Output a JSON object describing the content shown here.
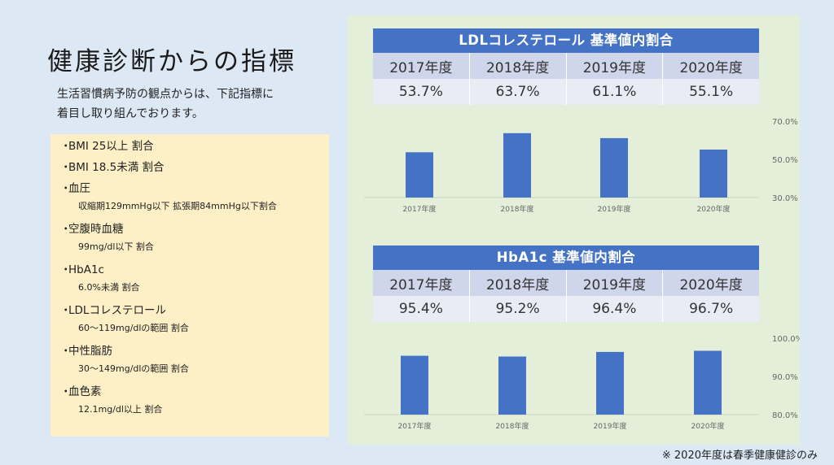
{
  "page_title": "健康診断からの指標",
  "intro": {
    "line1": "生活習慣病予防の観点からは、下記指標に",
    "line2": "着目し取り組んでおります。"
  },
  "metrics": [
    {
      "label": "BMI 25以上 割合",
      "sub": ""
    },
    {
      "label": "BMI 18.5未満 割合",
      "sub": ""
    },
    {
      "label": "血圧",
      "sub": "収縮期129mmHg以下 拡張期84mmHg以下割合"
    },
    {
      "label": "空腹時血糖",
      "sub": "99mg/dl以下 割合"
    },
    {
      "label": "HbA1c",
      "sub": "6.0%未満 割合"
    },
    {
      "label": "LDLコレステロール",
      "sub": "60〜119mg/dlの範囲 割合"
    },
    {
      "label": "中性脂肪",
      "sub": "30〜149mg/dlの範囲 割合"
    },
    {
      "label": "血色素",
      "sub": "12.1mg/dl以上 割合"
    }
  ],
  "bullet": "・",
  "tables": [
    {
      "title": "LDLコレステロール 基準値内割合",
      "years": [
        "2017年度",
        "2018年度",
        "2019年度",
        "2020年度"
      ],
      "values": [
        "53.7%",
        "63.7%",
        "61.1%",
        "55.1%"
      ]
    },
    {
      "title": "HbA1c 基準値内割合",
      "years": [
        "2017年度",
        "2018年度",
        "2019年度",
        "2020年度"
      ],
      "values": [
        "95.4%",
        "95.2%",
        "96.4%",
        "96.7%"
      ]
    }
  ],
  "footnote": "※ 2020年度は春季健康健診のみ",
  "colors": {
    "bar": "#4472c4",
    "header": "#4472c4",
    "panel_bg": "#e3efd9",
    "list_bg": "#fdefc6",
    "page_bg": "#dde8f5"
  },
  "chart_data": [
    {
      "type": "bar",
      "categories": [
        "2017年度",
        "2018年度",
        "2019年度",
        "2020年度"
      ],
      "values": [
        53.7,
        63.7,
        61.1,
        55.1
      ],
      "ylim": [
        30,
        70
      ],
      "yticks": [
        "70.0%",
        "50.0%",
        "30.0%"
      ],
      "ytick_values": [
        70,
        50,
        30
      ],
      "grid": false
    },
    {
      "type": "bar",
      "categories": [
        "2017年度",
        "2018年度",
        "2019年度",
        "2020年度"
      ],
      "values": [
        95.4,
        95.2,
        96.4,
        96.7
      ],
      "ylim": [
        80,
        100
      ],
      "yticks": [
        "100.0%",
        "90.0%",
        "80.0%"
      ],
      "ytick_values": [
        100,
        90,
        80
      ],
      "grid": false
    }
  ]
}
